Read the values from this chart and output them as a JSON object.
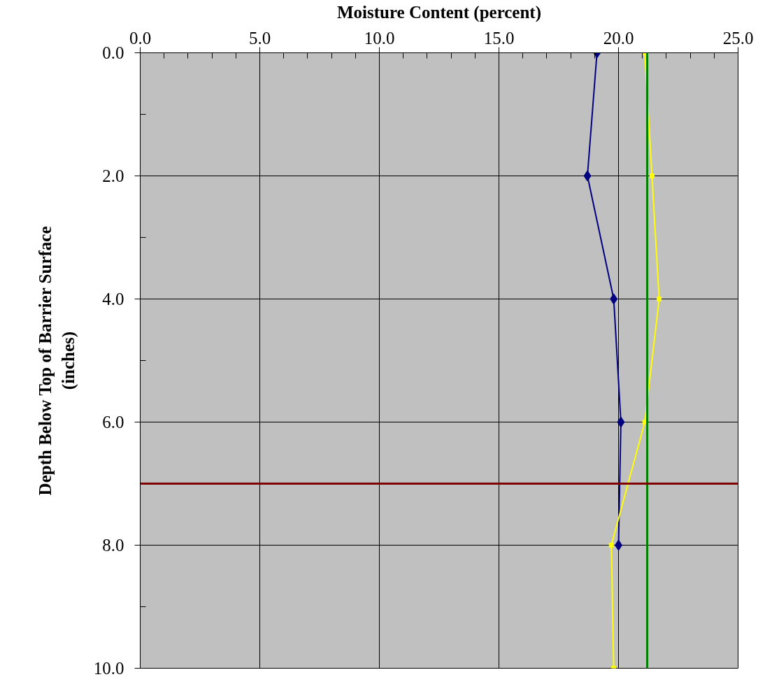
{
  "chart_data": {
    "type": "line",
    "xlabel": "Moisture Content (percent)",
    "ylabel": "Depth Below Top of Barrier Surface\n(inches)",
    "xlim": [
      0,
      25
    ],
    "xticks": [
      {
        "value": 0,
        "label": "0.0"
      },
      {
        "value": 5,
        "label": "5.0"
      },
      {
        "value": 10,
        "label": "10.0"
      },
      {
        "value": 15,
        "label": "15.0"
      },
      {
        "value": 20,
        "label": "20.0"
      },
      {
        "value": 25,
        "label": "25.0"
      }
    ],
    "ylim": [
      10,
      0
    ],
    "yticks": [
      {
        "value": 0,
        "label": "0.0"
      },
      {
        "value": 2,
        "label": "2.0"
      },
      {
        "value": 4,
        "label": "4.0"
      },
      {
        "value": 6,
        "label": "6.0"
      },
      {
        "value": 8,
        "label": "8.0"
      },
      {
        "value": 10,
        "label": "10.0"
      }
    ],
    "grid": true,
    "series": [
      {
        "color": "#000080",
        "marker": "diamond",
        "x": [
          19.1,
          18.7,
          19.8,
          20.1,
          20.0
        ],
        "values": [
          0,
          2,
          4,
          6,
          8
        ]
      },
      {
        "color": "#ffff00",
        "marker": "square",
        "x": [
          21.1,
          21.4,
          21.7,
          21.1,
          19.7,
          19.8
        ],
        "values": [
          0,
          2,
          4,
          6,
          8,
          10
        ]
      }
    ],
    "ref_lines": [
      {
        "axis": "x",
        "value": 21.2,
        "color": "#008000"
      },
      {
        "axis": "y",
        "value": 7.0,
        "color": "#800000"
      }
    ]
  }
}
